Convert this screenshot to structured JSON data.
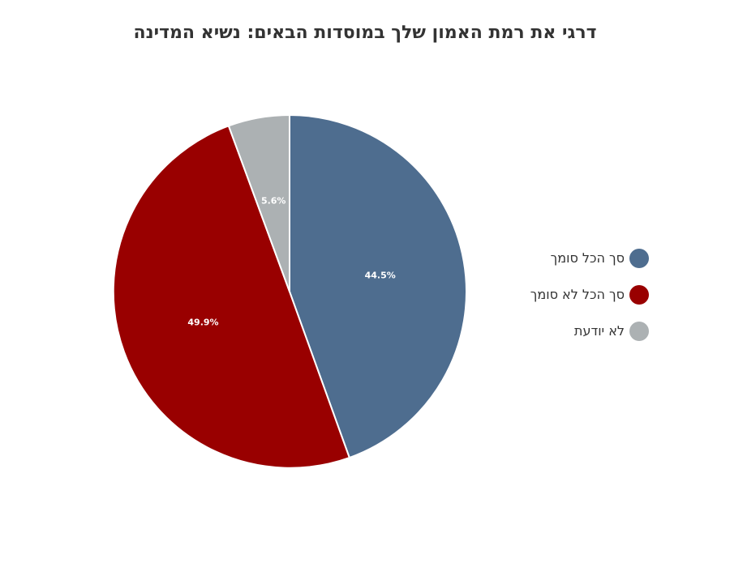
{
  "chart_data": {
    "type": "pie",
    "title": "דרגי את רמת האמון שלך במוסדות הבאים: נשיא המדינה",
    "legend_position": "right",
    "slices": [
      {
        "name": "סך הכל סומך",
        "value": 44.5,
        "label": "44.5%",
        "color": "#4e6d8f"
      },
      {
        "name": "סך הכל לא סומך",
        "value": 49.9,
        "label": "49.9%",
        "color": "#990000"
      },
      {
        "name": "לא יודעת",
        "value": 5.6,
        "label": "5.6%",
        "color": "#acb1b3"
      }
    ]
  }
}
